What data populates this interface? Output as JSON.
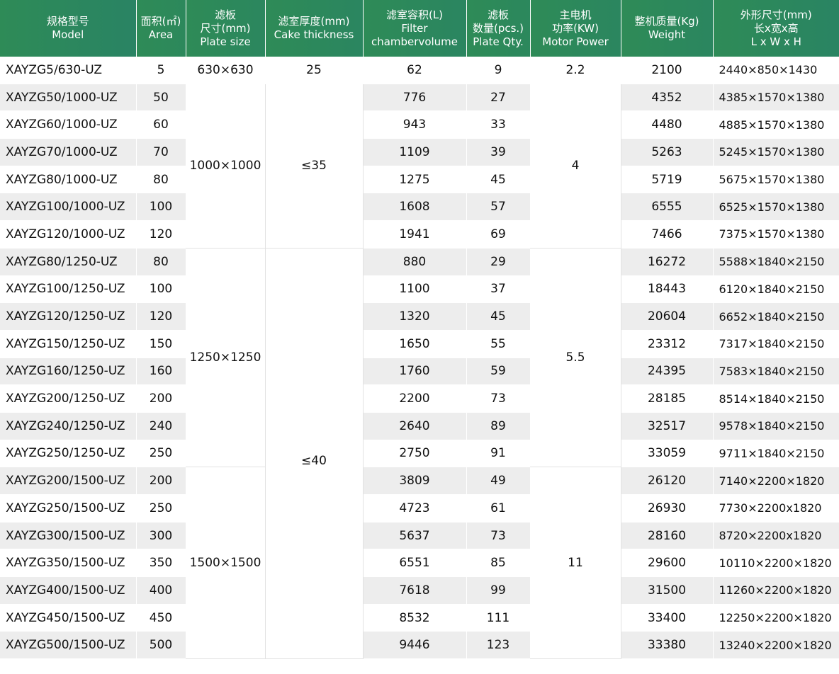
{
  "table": {
    "headers": [
      {
        "cn": "规格型号",
        "en": "Model"
      },
      {
        "cn": "面积(㎡)",
        "en": "Area"
      },
      {
        "cn": "滤板",
        "cn2": "尺寸(mm)",
        "en": "Plate size"
      },
      {
        "cn": "滤室厚度(mm)",
        "en": "Cake thickness"
      },
      {
        "cn": "滤室容积(L)",
        "cn2": "Filter",
        "en": "chambervolume"
      },
      {
        "cn": "滤板",
        "cn2": "数量(pcs.)",
        "en": "Plate Qty."
      },
      {
        "cn": "主电机",
        "cn2": "功率(KW)",
        "en": "Motor Power"
      },
      {
        "cn": "整机质量(Kg)",
        "en": "Weight"
      },
      {
        "cn": "外形尺寸(mm)",
        "cn2": "长x宽x高",
        "en": "L x W x H"
      }
    ],
    "plate_sizes": [
      "630×630",
      "1000×1000",
      "1250×1250",
      "1500×1500"
    ],
    "cake_thickness": [
      "25",
      "≤35",
      "≤40"
    ],
    "motor_power": [
      "2.2",
      "4",
      "5.5",
      "11"
    ],
    "rows": [
      {
        "model": "XAYZG5/630-UZ",
        "area": "5",
        "volume": "62",
        "plates": "9",
        "weight": "2100",
        "dims": "2440×850×1430"
      },
      {
        "model": "XAYZG50/1000-UZ",
        "area": "50",
        "volume": "776",
        "plates": "27",
        "weight": "4352",
        "dims": "4385×1570×1380"
      },
      {
        "model": "XAYZG60/1000-UZ",
        "area": "60",
        "volume": "943",
        "plates": "33",
        "weight": "4480",
        "dims": "4885×1570×1380"
      },
      {
        "model": "XAYZG70/1000-UZ",
        "area": "70",
        "volume": "1109",
        "plates": "39",
        "weight": "5263",
        "dims": "5245×1570×1380"
      },
      {
        "model": "XAYZG80/1000-UZ",
        "area": "80",
        "volume": "1275",
        "plates": "45",
        "weight": "5719",
        "dims": "5675×1570×1380"
      },
      {
        "model": "XAYZG100/1000-UZ",
        "area": "100",
        "volume": "1608",
        "plates": "57",
        "weight": "6555",
        "dims": "6525×1570×1380"
      },
      {
        "model": "XAYZG120/1000-UZ",
        "area": "120",
        "volume": "1941",
        "plates": "69",
        "weight": "7466",
        "dims": "7375×1570×1380"
      },
      {
        "model": "XAYZG80/1250-UZ",
        "area": "80",
        "volume": "880",
        "plates": "29",
        "weight": "16272",
        "dims": "5588×1840×2150"
      },
      {
        "model": "XAYZG100/1250-UZ",
        "area": "100",
        "volume": "1100",
        "plates": "37",
        "weight": "18443",
        "dims": "6120×1840×2150"
      },
      {
        "model": "XAYZG120/1250-UZ",
        "area": "120",
        "volume": "1320",
        "plates": "45",
        "weight": "20604",
        "dims": "6652×1840×2150"
      },
      {
        "model": "XAYZG150/1250-UZ",
        "area": "150",
        "volume": "1650",
        "plates": "55",
        "weight": "23312",
        "dims": "7317×1840×2150"
      },
      {
        "model": "XAYZG160/1250-UZ",
        "area": "160",
        "volume": "1760",
        "plates": "59",
        "weight": "24395",
        "dims": "7583×1840×2150"
      },
      {
        "model": "XAYZG200/1250-UZ",
        "area": "200",
        "volume": "2200",
        "plates": "73",
        "weight": "28185",
        "dims": "8514×1840×2150"
      },
      {
        "model": "XAYZG240/1250-UZ",
        "area": "240",
        "volume": "2640",
        "plates": "89",
        "weight": "32517",
        "dims": "9578×1840×2150"
      },
      {
        "model": "XAYZG250/1250-UZ",
        "area": "250",
        "volume": "2750",
        "plates": "91",
        "weight": "33059",
        "dims": "9711×1840×2150"
      },
      {
        "model": "XAYZG200/1500-UZ",
        "area": "200",
        "volume": "3809",
        "plates": "49",
        "weight": "26120",
        "dims": "7140×2200×1820"
      },
      {
        "model": "XAYZG250/1500-UZ",
        "area": "250",
        "volume": "4723",
        "plates": "61",
        "weight": "26930",
        "dims": "7730×2200x1820"
      },
      {
        "model": "XAYZG300/1500-UZ",
        "area": "300",
        "volume": "5637",
        "plates": "73",
        "weight": "28160",
        "dims": "8720×2200x1820"
      },
      {
        "model": "XAYZG350/1500-UZ",
        "area": "350",
        "volume": "6551",
        "plates": "85",
        "weight": "29600",
        "dims": "10110×2200×1820"
      },
      {
        "model": "XAYZG400/1500-UZ",
        "area": "400",
        "volume": "7618",
        "plates": "99",
        "weight": "31500",
        "dims": "11260×2200×1820"
      },
      {
        "model": "XAYZG450/1500-UZ",
        "area": "450",
        "volume": "8532",
        "plates": "111",
        "weight": "33400",
        "dims": "12250×2200×1820"
      },
      {
        "model": "XAYZG500/1500-UZ",
        "area": "500",
        "volume": "9446",
        "plates": "123",
        "weight": "33380",
        "dims": "13240×2200×1820"
      }
    ]
  }
}
